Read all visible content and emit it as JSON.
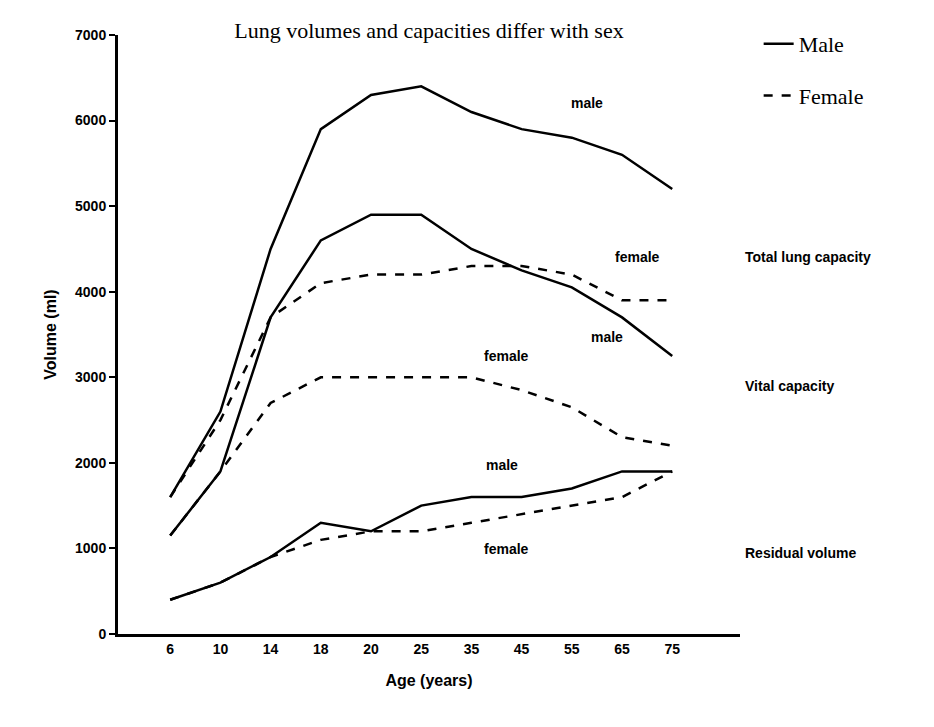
{
  "chart_data": {
    "type": "line",
    "title": "Lung volumes and capacities differ with sex",
    "x_label": "Age (years)",
    "y_label": "Volume (ml)",
    "categories": [
      "6",
      "10",
      "14",
      "18",
      "20",
      "25",
      "35",
      "45",
      "55",
      "65",
      "75"
    ],
    "ylim": [
      0,
      7000
    ],
    "yticks": [
      0,
      1000,
      2000,
      3000,
      4000,
      5000,
      6000,
      7000
    ],
    "grid": false,
    "legend": "upper right",
    "series": [
      {
        "name": "Male",
        "color": "#000000",
        "line_style": "solid",
        "values": [
          1600,
          2600,
          4500,
          5900,
          6300,
          6400,
          6100,
          5900,
          5800,
          5600,
          5200
        ]
      },
      {
        "name": "Female",
        "color": "#000000",
        "line_style": "dash",
        "values": [
          1600,
          2500,
          3700,
          4100,
          4200,
          4200,
          4300,
          4300,
          4200,
          3900,
          3900
        ]
      },
      {
        "name": "Male",
        "color": "#000000",
        "line_style": "solid",
        "values": [
          1150,
          1900,
          3700,
          4600,
          4900,
          4900,
          4500,
          4250,
          4050,
          3700,
          3250
        ]
      },
      {
        "name": "Female",
        "color": "#000000",
        "line_style": "dash",
        "values": [
          1150,
          1900,
          2700,
          3000,
          3000,
          3000,
          3000,
          2850,
          2650,
          2300,
          2200
        ]
      },
      {
        "name": "Male",
        "color": "#000000",
        "line_style": "solid",
        "values": [
          400,
          600,
          900,
          1300,
          1200,
          1500,
          1600,
          1600,
          1700,
          1900,
          1900
        ]
      },
      {
        "name": "Female",
        "color": "#000000",
        "line_style": "dash",
        "values": [
          400,
          600,
          900,
          1100,
          1200,
          1200,
          1300,
          1400,
          1500,
          1600,
          1900
        ]
      }
    ],
    "annotations": [
      {
        "text": "male",
        "x": 8.3,
        "y": 6200
      },
      {
        "text": "female",
        "x": 9.3,
        "y": 4400
      },
      {
        "text": "female",
        "x": 6.7,
        "y": 3250
      },
      {
        "text": "male",
        "x": 8.7,
        "y": 3470
      },
      {
        "text": "male",
        "x": 6.6,
        "y": 1975
      },
      {
        "text": "female",
        "x": 6.7,
        "y": 990
      }
    ],
    "side_labels": [
      {
        "text": "Total lung capacity",
        "y": 4400
      },
      {
        "text": "Vital capacity",
        "y": 2900
      },
      {
        "text": "Residual volume",
        "y": 950
      }
    ]
  }
}
